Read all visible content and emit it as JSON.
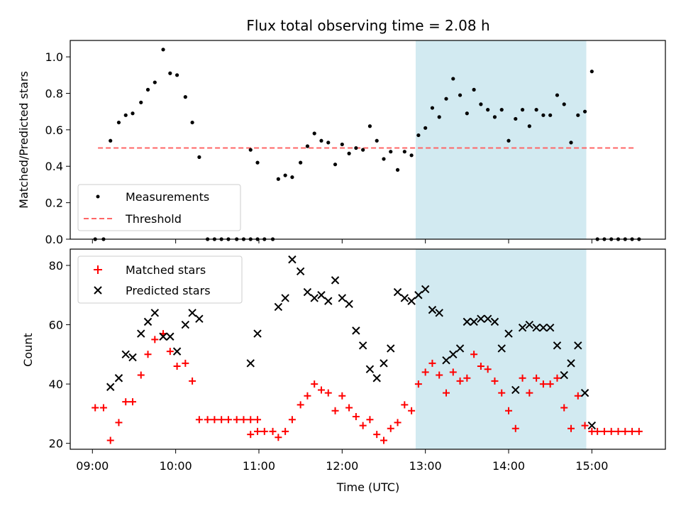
{
  "figure": {
    "title": "Flux total observing time = 2.08 h",
    "xlabel": "Time (UTC)",
    "xticks": [
      "09:00",
      "10:00",
      "11:00",
      "12:00",
      "13:00",
      "14:00",
      "15:00"
    ],
    "colors": {
      "shade": "#add8e6",
      "threshold": "#ff6666",
      "matched": "#ff0000",
      "predicted": "#000000",
      "measure": "#000000"
    }
  },
  "chart_data": [
    {
      "type": "scatter",
      "ylabel": "Matched/Predicted stars",
      "xlim": [
        "08:44",
        "15:53"
      ],
      "ylim": [
        0,
        1.09
      ],
      "yticks": [
        "0.0",
        "0.2",
        "0.4",
        "0.6",
        "0.8",
        "1.0"
      ],
      "shaded_interval": [
        "12:53",
        "14:56"
      ],
      "threshold": {
        "value": 0.5,
        "x_range": [
          "09:04",
          "15:31"
        ]
      },
      "legend": {
        "placement": "lower-left",
        "entries": [
          "Measurements",
          "Threshold"
        ]
      },
      "series": [
        {
          "name": "Measurements",
          "points": [
            [
              "09:02",
              0.0
            ],
            [
              "09:08",
              0.0
            ],
            [
              "09:13",
              0.54
            ],
            [
              "09:19",
              0.64
            ],
            [
              "09:24",
              0.68
            ],
            [
              "09:29",
              0.69
            ],
            [
              "09:35",
              0.75
            ],
            [
              "09:40",
              0.82
            ],
            [
              "09:45",
              0.86
            ],
            [
              "09:51",
              1.04
            ],
            [
              "09:56",
              0.91
            ],
            [
              "10:01",
              0.9
            ],
            [
              "10:07",
              0.78
            ],
            [
              "10:12",
              0.64
            ],
            [
              "10:17",
              0.45
            ],
            [
              "10:23",
              0.0
            ],
            [
              "10:28",
              0.0
            ],
            [
              "10:33",
              0.0
            ],
            [
              "10:38",
              0.0
            ],
            [
              "10:44",
              0.0
            ],
            [
              "10:49",
              0.0
            ],
            [
              "10:54",
              0.0
            ],
            [
              "10:59",
              0.0
            ],
            [
              "10:54",
              0.49
            ],
            [
              "10:59",
              0.42
            ],
            [
              "11:04",
              0.0
            ],
            [
              "11:10",
              0.0
            ],
            [
              "11:14",
              0.33
            ],
            [
              "11:19",
              0.35
            ],
            [
              "11:24",
              0.34
            ],
            [
              "11:30",
              0.42
            ],
            [
              "11:35",
              0.51
            ],
            [
              "11:40",
              0.58
            ],
            [
              "11:45",
              0.54
            ],
            [
              "11:50",
              0.53
            ],
            [
              "11:55",
              0.41
            ],
            [
              "12:00",
              0.52
            ],
            [
              "12:05",
              0.47
            ],
            [
              "12:10",
              0.5
            ],
            [
              "12:15",
              0.49
            ],
            [
              "12:20",
              0.62
            ],
            [
              "12:25",
              0.54
            ],
            [
              "12:30",
              0.44
            ],
            [
              "12:35",
              0.48
            ],
            [
              "12:40",
              0.38
            ],
            [
              "12:45",
              0.48
            ],
            [
              "12:50",
              0.46
            ],
            [
              "12:55",
              0.57
            ],
            [
              "13:00",
              0.61
            ],
            [
              "13:05",
              0.72
            ],
            [
              "13:10",
              0.67
            ],
            [
              "13:15",
              0.77
            ],
            [
              "13:20",
              0.88
            ],
            [
              "13:25",
              0.79
            ],
            [
              "13:30",
              0.69
            ],
            [
              "13:35",
              0.82
            ],
            [
              "13:40",
              0.74
            ],
            [
              "13:45",
              0.71
            ],
            [
              "13:50",
              0.67
            ],
            [
              "13:55",
              0.71
            ],
            [
              "14:00",
              0.54
            ],
            [
              "14:05",
              0.66
            ],
            [
              "14:10",
              0.71
            ],
            [
              "14:15",
              0.62
            ],
            [
              "14:20",
              0.71
            ],
            [
              "14:25",
              0.68
            ],
            [
              "14:30",
              0.68
            ],
            [
              "14:35",
              0.79
            ],
            [
              "14:40",
              0.74
            ],
            [
              "14:45",
              0.53
            ],
            [
              "14:50",
              0.68
            ],
            [
              "14:55",
              0.7
            ],
            [
              "15:00",
              0.92
            ],
            [
              "15:04",
              0.0
            ],
            [
              "15:09",
              0.0
            ],
            [
              "15:14",
              0.0
            ],
            [
              "15:19",
              0.0
            ],
            [
              "15:24",
              0.0
            ],
            [
              "15:29",
              0.0
            ],
            [
              "15:34",
              0.0
            ]
          ]
        }
      ]
    },
    {
      "type": "scatter",
      "ylabel": "Count",
      "xlim": [
        "08:44",
        "15:53"
      ],
      "ylim": [
        18,
        85.5
      ],
      "yticks": [
        "20",
        "40",
        "60",
        "80"
      ],
      "shaded_interval": [
        "12:53",
        "14:56"
      ],
      "legend": {
        "placement": "top-left",
        "entries": [
          "Matched stars",
          "Predicted stars"
        ]
      },
      "series": [
        {
          "name": "Matched stars",
          "marker": "+",
          "points": [
            [
              "09:02",
              32
            ],
            [
              "09:08",
              32
            ],
            [
              "09:13",
              21
            ],
            [
              "09:19",
              27
            ],
            [
              "09:24",
              34
            ],
            [
              "09:29",
              34
            ],
            [
              "09:35",
              43
            ],
            [
              "09:40",
              50
            ],
            [
              "09:45",
              55
            ],
            [
              "09:51",
              57
            ],
            [
              "09:56",
              51
            ],
            [
              "10:01",
              46
            ],
            [
              "10:07",
              47
            ],
            [
              "10:12",
              41
            ],
            [
              "10:17",
              28
            ],
            [
              "10:23",
              28
            ],
            [
              "10:28",
              28
            ],
            [
              "10:33",
              28
            ],
            [
              "10:38",
              28
            ],
            [
              "10:44",
              28
            ],
            [
              "10:49",
              28
            ],
            [
              "10:54",
              28
            ],
            [
              "10:59",
              28
            ],
            [
              "10:54",
              23
            ],
            [
              "10:59",
              24
            ],
            [
              "11:04",
              24
            ],
            [
              "11:10",
              24
            ],
            [
              "11:14",
              22
            ],
            [
              "11:19",
              24
            ],
            [
              "11:24",
              28
            ],
            [
              "11:30",
              33
            ],
            [
              "11:35",
              36
            ],
            [
              "11:40",
              40
            ],
            [
              "11:45",
              38
            ],
            [
              "11:50",
              37
            ],
            [
              "11:55",
              31
            ],
            [
              "12:00",
              36
            ],
            [
              "12:05",
              32
            ],
            [
              "12:10",
              29
            ],
            [
              "12:15",
              26
            ],
            [
              "12:20",
              28
            ],
            [
              "12:25",
              23
            ],
            [
              "12:30",
              21
            ],
            [
              "12:35",
              25
            ],
            [
              "12:40",
              27
            ],
            [
              "12:45",
              33
            ],
            [
              "12:50",
              31
            ],
            [
              "12:55",
              40
            ],
            [
              "13:00",
              44
            ],
            [
              "13:05",
              47
            ],
            [
              "13:10",
              43
            ],
            [
              "13:15",
              37
            ],
            [
              "13:20",
              44
            ],
            [
              "13:25",
              41
            ],
            [
              "13:30",
              42
            ],
            [
              "13:35",
              50
            ],
            [
              "13:40",
              46
            ],
            [
              "13:45",
              45
            ],
            [
              "13:50",
              41
            ],
            [
              "13:55",
              37
            ],
            [
              "14:00",
              31
            ],
            [
              "14:05",
              25
            ],
            [
              "14:10",
              42
            ],
            [
              "14:15",
              37
            ],
            [
              "14:20",
              42
            ],
            [
              "14:25",
              40
            ],
            [
              "14:30",
              40
            ],
            [
              "14:35",
              42
            ],
            [
              "14:40",
              32
            ],
            [
              "14:45",
              25
            ],
            [
              "14:50",
              36
            ],
            [
              "14:55",
              26
            ],
            [
              "15:00",
              24
            ],
            [
              "15:04",
              24
            ],
            [
              "15:09",
              24
            ],
            [
              "15:14",
              24
            ],
            [
              "15:19",
              24
            ],
            [
              "15:24",
              24
            ],
            [
              "15:29",
              24
            ],
            [
              "15:34",
              24
            ]
          ]
        },
        {
          "name": "Predicted stars",
          "marker": "x",
          "points": [
            [
              "09:13",
              39
            ],
            [
              "09:19",
              42
            ],
            [
              "09:24",
              50
            ],
            [
              "09:29",
              49
            ],
            [
              "09:35",
              57
            ],
            [
              "09:40",
              61
            ],
            [
              "09:45",
              64
            ],
            [
              "09:51",
              56
            ],
            [
              "09:56",
              56
            ],
            [
              "10:01",
              51
            ],
            [
              "10:07",
              60
            ],
            [
              "10:12",
              64
            ],
            [
              "10:17",
              62
            ],
            [
              "10:54",
              47
            ],
            [
              "10:59",
              57
            ],
            [
              "11:14",
              66
            ],
            [
              "11:19",
              69
            ],
            [
              "11:24",
              82
            ],
            [
              "11:30",
              78
            ],
            [
              "11:35",
              71
            ],
            [
              "11:40",
              69
            ],
            [
              "11:45",
              70
            ],
            [
              "11:50",
              68
            ],
            [
              "11:55",
              75
            ],
            [
              "12:00",
              69
            ],
            [
              "12:05",
              67
            ],
            [
              "12:10",
              58
            ],
            [
              "12:15",
              53
            ],
            [
              "12:20",
              45
            ],
            [
              "12:25",
              42
            ],
            [
              "12:30",
              47
            ],
            [
              "12:35",
              52
            ],
            [
              "12:40",
              71
            ],
            [
              "12:45",
              69
            ],
            [
              "12:50",
              68
            ],
            [
              "12:55",
              70
            ],
            [
              "13:00",
              72
            ],
            [
              "13:05",
              65
            ],
            [
              "13:10",
              64
            ],
            [
              "13:15",
              48
            ],
            [
              "13:20",
              50
            ],
            [
              "13:25",
              52
            ],
            [
              "13:30",
              61
            ],
            [
              "13:35",
              61
            ],
            [
              "13:40",
              62
            ],
            [
              "13:45",
              62
            ],
            [
              "13:50",
              61
            ],
            [
              "13:55",
              52
            ],
            [
              "14:00",
              57
            ],
            [
              "14:05",
              38
            ],
            [
              "14:10",
              59
            ],
            [
              "14:15",
              60
            ],
            [
              "14:20",
              59
            ],
            [
              "14:25",
              59
            ],
            [
              "14:30",
              59
            ],
            [
              "14:35",
              53
            ],
            [
              "14:40",
              43
            ],
            [
              "14:45",
              47
            ],
            [
              "14:50",
              53
            ],
            [
              "14:55",
              37
            ],
            [
              "15:00",
              26
            ]
          ]
        }
      ]
    }
  ]
}
